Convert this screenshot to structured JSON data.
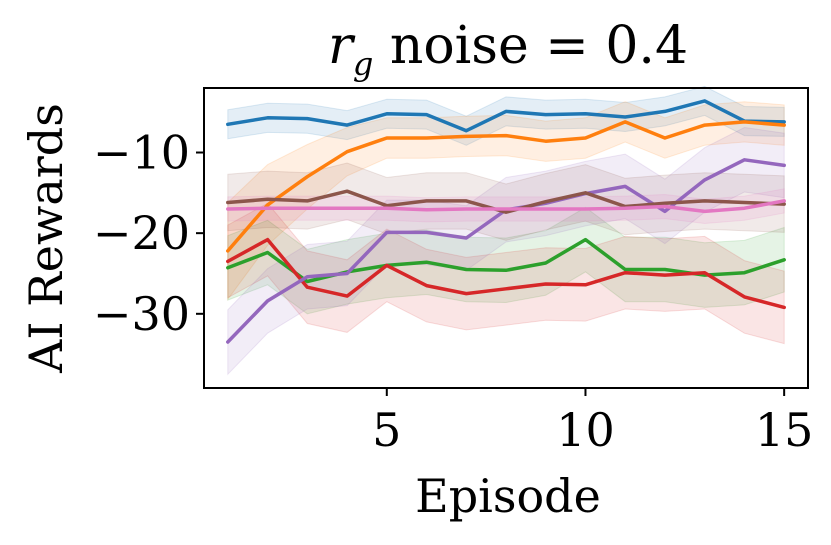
{
  "chart_data": {
    "type": "line",
    "title": {
      "symbol": "r",
      "subscript": "g",
      "text": " noise = 0.4"
    },
    "xlabel": "Episode",
    "ylabel": "AI Rewards",
    "xlim": [
      0.4,
      15.6
    ],
    "ylim": [
      -39.2,
      -2.0
    ],
    "xticks": [
      5,
      10,
      15
    ],
    "xtick_labels": [
      "5",
      "10",
      "15"
    ],
    "yticks": [
      -10,
      -20,
      -30
    ],
    "ytick_labels": [
      "−10",
      "−20",
      "−30"
    ],
    "grid": false,
    "legend": "none",
    "x": [
      1,
      2,
      3,
      4,
      5,
      6,
      7,
      8,
      9,
      10,
      11,
      12,
      13,
      14,
      15
    ],
    "series": [
      {
        "color": "#1f77b4",
        "values": [
          -6.5,
          -5.7,
          -5.8,
          -6.6,
          -5.2,
          -5.3,
          -7.3,
          -4.9,
          -5.3,
          -5.2,
          -5.6,
          -4.9,
          -3.6,
          -6.1,
          -6.2
        ],
        "band": [
          1.8,
          1.8,
          1.8,
          1.8,
          1.8,
          1.8,
          1.8,
          1.8,
          1.8,
          1.8,
          1.8,
          1.8,
          1.8,
          1.8,
          1.8
        ]
      },
      {
        "color": "#ff7f0e",
        "values": [
          -22.2,
          -16.5,
          -13.0,
          -9.9,
          -8.2,
          -8.2,
          -8.0,
          -7.9,
          -8.6,
          -8.2,
          -6.2,
          -8.2,
          -6.6,
          -6.2,
          -6.6
        ],
        "band": [
          6.0,
          5.0,
          4.0,
          3.0,
          2.5,
          2.5,
          2.5,
          2.5,
          2.5,
          2.5,
          2.5,
          2.5,
          2.5,
          2.5,
          2.5
        ]
      },
      {
        "color": "#2ca02c",
        "values": [
          -24.3,
          -22.4,
          -26.0,
          -24.8,
          -24.0,
          -23.6,
          -24.5,
          -24.6,
          -23.7,
          -20.8,
          -24.5,
          -24.5,
          -25.2,
          -24.9,
          -23.3
        ],
        "band": [
          4.0,
          4.0,
          4.0,
          4.0,
          4.0,
          4.0,
          4.0,
          4.0,
          4.0,
          4.0,
          4.0,
          4.0,
          4.0,
          4.0,
          4.0
        ]
      },
      {
        "color": "#d62728",
        "values": [
          -23.5,
          -20.8,
          -26.7,
          -27.8,
          -24.0,
          -26.5,
          -27.5,
          -26.9,
          -26.3,
          -26.4,
          -24.9,
          -25.2,
          -24.9,
          -27.9,
          -29.2
        ],
        "band": [
          4.5,
          4.5,
          4.5,
          4.5,
          4.5,
          4.5,
          4.5,
          4.5,
          4.5,
          4.5,
          4.5,
          4.5,
          4.5,
          4.5,
          4.5
        ]
      },
      {
        "color": "#9467bd",
        "values": [
          -33.5,
          -28.4,
          -25.4,
          -25.0,
          -19.9,
          -19.9,
          -20.6,
          -17.1,
          -16.3,
          -15.1,
          -14.2,
          -17.3,
          -13.4,
          -10.9,
          -11.6
        ],
        "band": [
          4.0,
          4.0,
          4.0,
          4.0,
          4.0,
          4.0,
          4.0,
          4.0,
          4.0,
          4.0,
          4.0,
          4.0,
          4.0,
          4.0,
          4.0
        ]
      },
      {
        "color": "#8c564b",
        "values": [
          -16.2,
          -15.8,
          -16.0,
          -14.8,
          -16.6,
          -16.0,
          -16.0,
          -17.4,
          -16.1,
          -15.0,
          -16.7,
          -16.3,
          -16.0,
          -16.2,
          -16.4
        ],
        "band": [
          3.5,
          3.5,
          3.5,
          3.5,
          3.5,
          3.5,
          3.5,
          3.5,
          3.5,
          3.5,
          3.5,
          3.5,
          3.5,
          3.5,
          3.5
        ]
      },
      {
        "color": "#e377c2",
        "values": [
          -17.0,
          -16.9,
          -16.9,
          -16.9,
          -16.9,
          -17.1,
          -17.0,
          -17.0,
          -17.0,
          -17.0,
          -16.9,
          -16.7,
          -17.3,
          -16.9,
          -16.0
        ],
        "band": [
          1.5,
          1.5,
          1.5,
          1.5,
          1.5,
          1.5,
          1.5,
          1.5,
          1.5,
          1.5,
          1.5,
          1.5,
          1.5,
          1.5,
          1.5
        ]
      }
    ]
  }
}
